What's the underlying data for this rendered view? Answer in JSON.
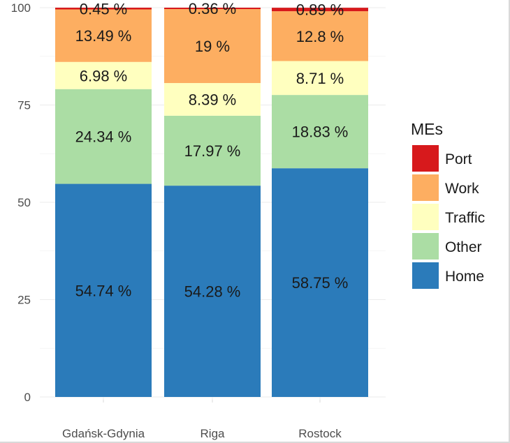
{
  "chart_data": {
    "type": "stacked-bar",
    "title": "",
    "xlabel": "",
    "ylabel": "",
    "ylim": [
      0,
      100
    ],
    "y_ticks": [
      "0",
      "25",
      "50",
      "75",
      "100"
    ],
    "categories": [
      "Gdańsk-Gdynia",
      "Riga",
      "Rostock"
    ],
    "series": [
      {
        "name": "Home",
        "color": "#2b7bba",
        "values": [
          54.74,
          54.28,
          58.75
        ],
        "labels": [
          "54.74 %",
          "54.28 %",
          "58.75 %"
        ]
      },
      {
        "name": "Other",
        "color": "#abdda4",
        "values": [
          24.34,
          17.97,
          18.83
        ],
        "labels": [
          "24.34 %",
          "17.97 %",
          "18.83 %"
        ]
      },
      {
        "name": "Traffic",
        "color": "#ffffbf",
        "values": [
          6.98,
          8.39,
          8.71
        ],
        "labels": [
          "6.98 %",
          "8.39 %",
          "8.71 %"
        ]
      },
      {
        "name": "Work",
        "color": "#fdae61",
        "values": [
          13.49,
          19.0,
          12.8
        ],
        "labels": [
          "13.49 %",
          "19 %",
          "12.8 %"
        ]
      },
      {
        "name": "Port",
        "color": "#d7191c",
        "values": [
          0.45,
          0.36,
          0.89
        ],
        "labels": [
          "0.45 %",
          "0.36 %",
          "0.89 %"
        ]
      }
    ],
    "legend": {
      "title": "MEs",
      "position": "right",
      "order": [
        "Port",
        "Work",
        "Traffic",
        "Other",
        "Home"
      ]
    },
    "grid": true
  }
}
